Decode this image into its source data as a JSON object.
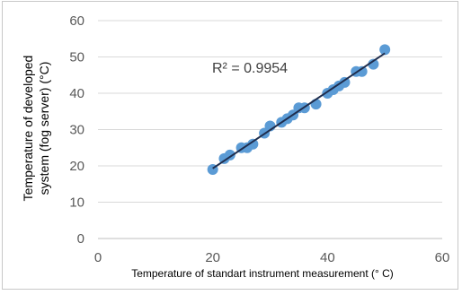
{
  "chart_data": {
    "type": "scatter",
    "title": "",
    "xlabel": "Temperature of standart instrument measurement (° C)",
    "ylabel_lines": [
      "Temperature of developed",
      "system (fog server) (°C)"
    ],
    "xlim": [
      0,
      60
    ],
    "ylim": [
      0,
      60
    ],
    "x_ticks": [
      0,
      20,
      40,
      60
    ],
    "y_ticks": [
      0,
      10,
      20,
      30,
      40,
      50,
      60
    ],
    "grid": "horizontal",
    "legend": "none",
    "annotation": "R² = 0.9954",
    "marker_color": "#5b9bd5",
    "trendline_color": "#1f2d4d",
    "trendline": {
      "x": [
        20,
        50
      ],
      "y": [
        19.3,
        51.0
      ]
    },
    "points": [
      {
        "x": 20,
        "y": 19
      },
      {
        "x": 22,
        "y": 22
      },
      {
        "x": 23,
        "y": 23
      },
      {
        "x": 25,
        "y": 25
      },
      {
        "x": 26,
        "y": 25
      },
      {
        "x": 27,
        "y": 26
      },
      {
        "x": 29,
        "y": 29
      },
      {
        "x": 30,
        "y": 31
      },
      {
        "x": 32,
        "y": 32
      },
      {
        "x": 33,
        "y": 33
      },
      {
        "x": 34,
        "y": 34
      },
      {
        "x": 35,
        "y": 36
      },
      {
        "x": 36,
        "y": 36
      },
      {
        "x": 38,
        "y": 37
      },
      {
        "x": 40,
        "y": 40
      },
      {
        "x": 41,
        "y": 41
      },
      {
        "x": 42,
        "y": 42
      },
      {
        "x": 43,
        "y": 43
      },
      {
        "x": 45,
        "y": 46
      },
      {
        "x": 46,
        "y": 46
      },
      {
        "x": 48,
        "y": 48
      },
      {
        "x": 50,
        "y": 52
      }
    ]
  }
}
